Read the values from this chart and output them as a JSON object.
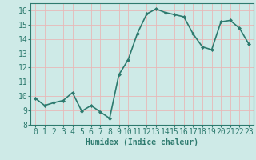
{
  "x": [
    0,
    1,
    2,
    3,
    4,
    5,
    6,
    7,
    8,
    9,
    10,
    11,
    12,
    13,
    14,
    15,
    16,
    17,
    18,
    19,
    20,
    21,
    22,
    23
  ],
  "y": [
    9.85,
    9.35,
    9.55,
    9.7,
    10.25,
    8.95,
    9.35,
    8.9,
    8.45,
    11.5,
    12.55,
    14.4,
    15.75,
    16.1,
    15.85,
    15.7,
    15.55,
    14.35,
    13.45,
    13.25,
    15.2,
    15.3,
    14.75,
    13.65
  ],
  "line_color": "#2d7a6e",
  "marker": "D",
  "marker_size": 2.0,
  "bg_color": "#ceeae7",
  "grid_color": "#b0d8d4",
  "xlabel": "Humidex (Indice chaleur)",
  "ylim": [
    8,
    16.5
  ],
  "xlim": [
    -0.5,
    23.5
  ],
  "yticks": [
    8,
    9,
    10,
    11,
    12,
    13,
    14,
    15,
    16
  ],
  "xticks": [
    0,
    1,
    2,
    3,
    4,
    5,
    6,
    7,
    8,
    9,
    10,
    11,
    12,
    13,
    14,
    15,
    16,
    17,
    18,
    19,
    20,
    21,
    22,
    23
  ],
  "xlabel_fontsize": 7,
  "tick_fontsize": 7,
  "line_width": 1.2
}
